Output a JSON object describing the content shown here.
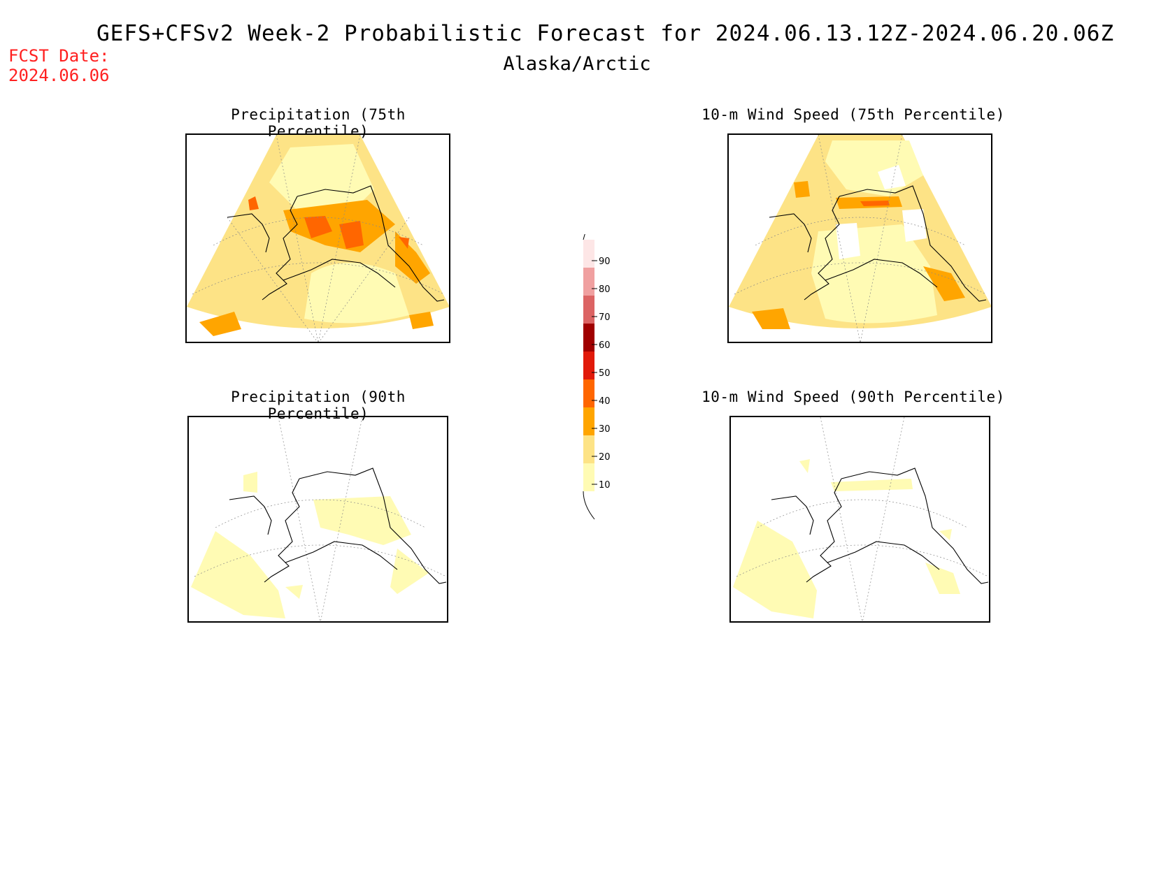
{
  "header": {
    "title": "GEFS+CFSv2 Week-2 Probabilistic Forecast for 2024.06.13.12Z-2024.06.20.06Z",
    "subtitle": "Alaska/Arctic",
    "fcst_label": "FCST Date:",
    "fcst_date": "2024.06.06"
  },
  "panels": [
    {
      "id": "precip-75",
      "title": "Precipitation (75th Percentile)",
      "intensity": "high"
    },
    {
      "id": "wind-75",
      "title": "10-m Wind Speed (75th Percentile)",
      "intensity": "high"
    },
    {
      "id": "precip-90",
      "title": "Precipitation (90th Percentile)",
      "intensity": "low"
    },
    {
      "id": "wind-90",
      "title": "10-m Wind Speed (90th Percentile)",
      "intensity": "low"
    }
  ],
  "colorbar": {
    "labels": [
      "10",
      "20",
      "30",
      "40",
      "50",
      "60",
      "70",
      "80",
      "90"
    ],
    "colors": [
      "#fffbb4",
      "#fde386",
      "#ffa500",
      "#ff6600",
      "#e11a0a",
      "#a00000",
      "#dc6464",
      "#f0a0a0",
      "#fde6e6"
    ]
  }
}
